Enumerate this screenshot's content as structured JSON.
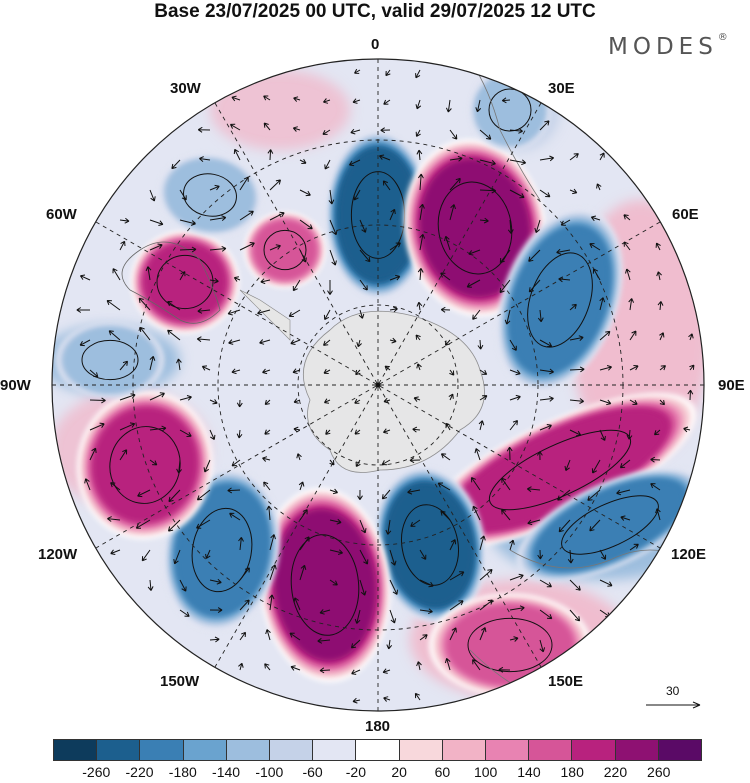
{
  "title": "Base 23/07/2025 00 UTC, valid 29/07/2025 12 UTC",
  "brand": "MODES",
  "brand_mark": "®",
  "longitude_labels": {
    "top": "0",
    "bottom": "180",
    "w30": "30W",
    "e30": "30E",
    "w60": "60W",
    "e60": "60E",
    "w90": "90W",
    "e90": "90E",
    "w120": "120W",
    "e120": "120E",
    "w150": "150W",
    "e150": "150E"
  },
  "reference_vector": {
    "label": "30"
  },
  "colorbar": {
    "colors": [
      "#0d3b5c",
      "#1c5f8e",
      "#3a7fb4",
      "#6aa3cf",
      "#9dbede",
      "#c5d2e8",
      "#e3e6f3",
      "#ffffff",
      "#f8d8dc",
      "#f2b3c6",
      "#e883b2",
      "#d65598",
      "#b8227e",
      "#8e1172",
      "#5a0a66"
    ],
    "ticks": [
      "-260",
      "-220",
      "-180",
      "-140",
      "-100",
      "-60",
      "-20",
      "20",
      "60",
      "100",
      "140",
      "180",
      "220",
      "260"
    ]
  },
  "map_data": {
    "anomaly_cells": [
      {
        "name": "cell-0E-negative",
        "value": -240
      },
      {
        "name": "cell-40E-positive",
        "value": 240
      },
      {
        "name": "cell-70E-negative",
        "value": -200
      },
      {
        "name": "cell-90E-100E-positive",
        "value": 220
      },
      {
        "name": "cell-120E-negative",
        "value": -180
      },
      {
        "name": "cell-140E-negative",
        "value": -240
      },
      {
        "name": "cell-150E-positive",
        "value": 160
      },
      {
        "name": "cell-170W-positive",
        "value": 240
      },
      {
        "name": "cell-140W-negative",
        "value": -200
      },
      {
        "name": "cell-110W-positive",
        "value": 200
      },
      {
        "name": "cell-60W-positive",
        "value": 200
      },
      {
        "name": "cell-45W-negative",
        "value": -120
      },
      {
        "name": "cell-20W-positive",
        "value": 160
      },
      {
        "name": "cell-20E-negative",
        "value": -100
      },
      {
        "name": "cell-80W-negative",
        "value": -120
      }
    ]
  }
}
